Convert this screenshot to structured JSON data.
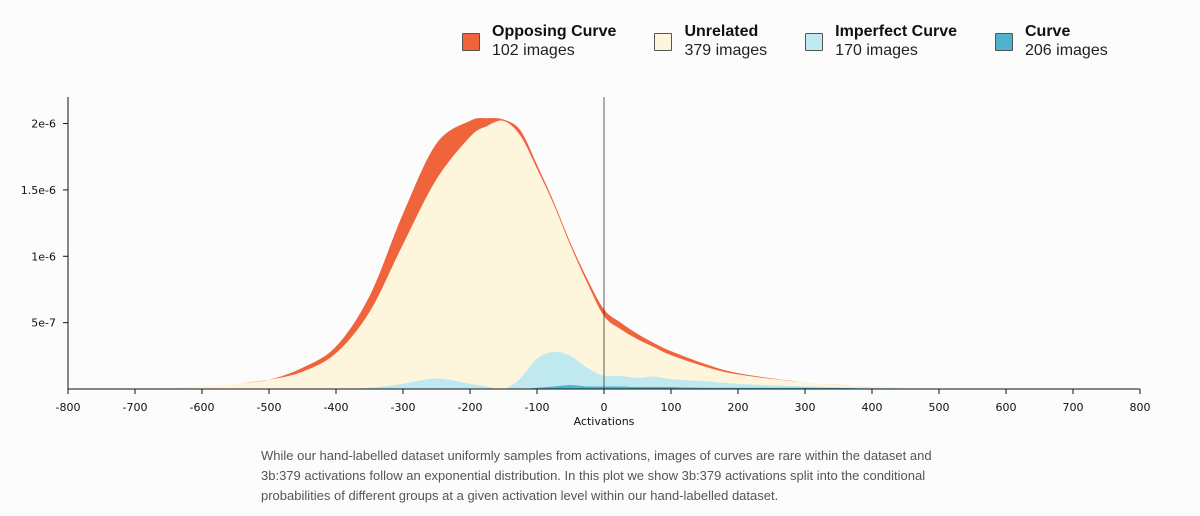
{
  "legend": [
    {
      "name": "Opposing Curve",
      "count": "102 images",
      "color": "#f0643c"
    },
    {
      "name": "Unrelated",
      "count": "379 images",
      "color": "#fdf5dc"
    },
    {
      "name": "Imperfect Curve",
      "count": "170 images",
      "color": "#bfe8ef"
    },
    {
      "name": "Curve",
      "count": "206 images",
      "color": "#4eb3cf"
    }
  ],
  "caption": "While our hand-labelled dataset uniformly samples from activations, images of curves are rare within the dataset and 3b:379 activations follow an exponential distribution. In this plot we show 3b:379 activations split into the conditional probabilities of different groups at a given activation level within our hand-labelled dataset.",
  "chart_data": {
    "type": "area",
    "stacked": true,
    "xlabel": "Activations",
    "ylabel": "",
    "xlim": [
      -800,
      800
    ],
    "ylim": [
      0,
      2.2e-06
    ],
    "x_ticks": [
      -800,
      -700,
      -600,
      -500,
      -400,
      -300,
      -200,
      -100,
      0,
      100,
      200,
      300,
      400,
      500,
      600,
      700,
      800
    ],
    "x_tick_labels": [
      "-800",
      "-700",
      "-600",
      "-500",
      "-400",
      "-300",
      "-200",
      "-100",
      "0",
      "100",
      "200",
      "300",
      "400",
      "500",
      "600",
      "700",
      "800"
    ],
    "y_ticks": [
      5e-07,
      1e-06,
      1.5e-06,
      2e-06
    ],
    "y_tick_labels": [
      "5e-7",
      "1e-6",
      "1.5e-6",
      "2e-6"
    ],
    "vertical_line_x": 0,
    "x": [
      -800,
      -700,
      -600,
      -550,
      -500,
      -450,
      -400,
      -350,
      -300,
      -250,
      -200,
      -175,
      -150,
      -125,
      -100,
      -75,
      -50,
      -25,
      0,
      25,
      50,
      75,
      100,
      150,
      200,
      300,
      400,
      500,
      600,
      700,
      800
    ],
    "series": [
      {
        "name": "Curve",
        "values": [
          0,
          0,
          0,
          0,
          0,
          0,
          0,
          0,
          0,
          0,
          0,
          0,
          0,
          0,
          1e-08,
          2e-08,
          3e-08,
          2e-08,
          2e-08,
          2e-08,
          1.5e-08,
          1.5e-08,
          1.5e-08,
          1e-08,
          1e-08,
          1e-08,
          5e-09,
          0,
          0,
          0,
          0
        ]
      },
      {
        "name": "Imperfect Curve",
        "values": [
          0,
          0,
          0,
          0,
          0,
          0,
          0,
          1e-08,
          4e-08,
          8e-08,
          4e-08,
          2e-08,
          0,
          8e-08,
          2.2e-07,
          2.6e-07,
          2.2e-07,
          1.4e-07,
          8e-08,
          8e-08,
          7e-08,
          8e-08,
          6e-08,
          5e-08,
          3e-08,
          1e-08,
          5e-09,
          0,
          0,
          0,
          0
        ]
      },
      {
        "name": "Unrelated",
        "values": [
          0,
          5e-09,
          2e-08,
          4e-08,
          7e-08,
          1.3e-07,
          2.7e-07,
          5.7e-07,
          1.05e-06,
          1.5e-06,
          1.86e-06,
          1.96e-06,
          2.02e-06,
          1.83e-06,
          1.43e-06,
          1.11e-06,
          8.3e-07,
          6.4e-07,
          4.5e-07,
          3.5e-07,
          2.9e-07,
          2.2e-07,
          1.8e-07,
          1.1e-07,
          7e-08,
          3e-08,
          1e-08,
          5e-09,
          0,
          0,
          0
        ]
      },
      {
        "name": "Opposing Curve",
        "values": [
          0,
          0,
          0,
          0,
          0,
          3e-08,
          5e-08,
          1.2e-07,
          2.3e-07,
          2.7e-07,
          1.2e-07,
          6e-08,
          1e-08,
          4e-08,
          3e-08,
          2e-08,
          2e-08,
          3e-08,
          5e-08,
          5e-08,
          4e-08,
          3e-08,
          3e-08,
          2e-08,
          1e-08,
          0,
          0,
          0,
          0,
          0,
          0
        ]
      }
    ]
  }
}
